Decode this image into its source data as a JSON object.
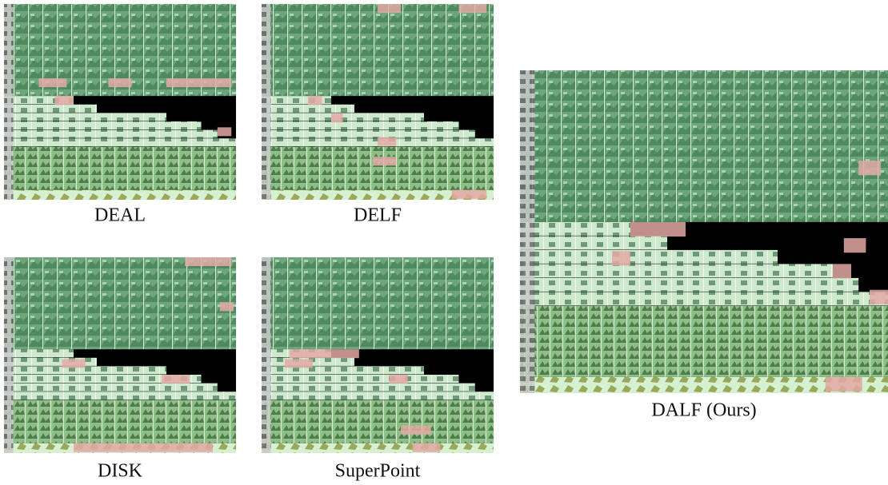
{
  "panels": [
    {
      "caption": "DEAL"
    },
    {
      "caption": "DELF"
    },
    {
      "caption": "DISK"
    },
    {
      "caption": "SuperPoint"
    },
    {
      "caption": "DALF (Ours)"
    }
  ]
}
